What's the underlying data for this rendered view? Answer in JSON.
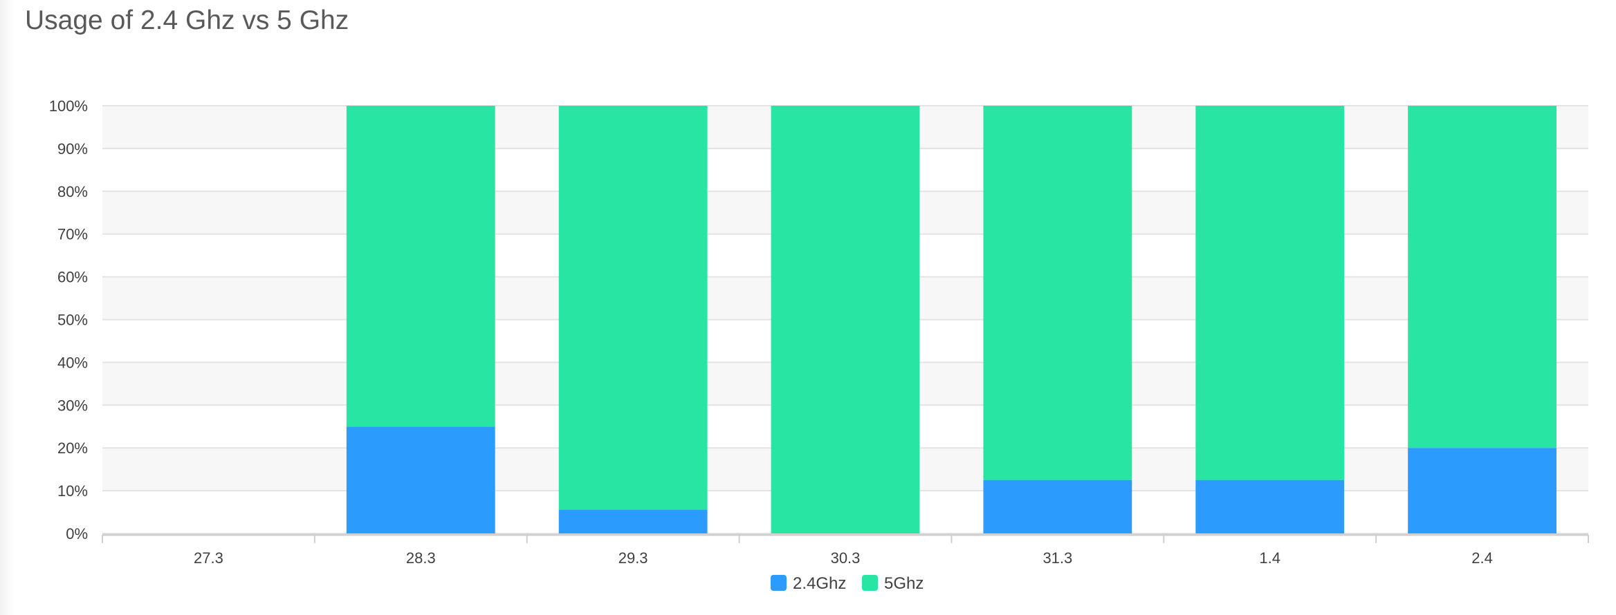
{
  "chart_data": {
    "type": "bar",
    "stacked": true,
    "title": "Usage of 2.4 Ghz vs 5 Ghz",
    "xlabel": "",
    "ylabel": "",
    "categories": [
      "27.3",
      "28.3",
      "29.3",
      "30.3",
      "31.3",
      "1.4",
      "2.4"
    ],
    "series": [
      {
        "name": "2.4Ghz",
        "color": "#2b9bfe",
        "values": [
          0,
          25,
          5.6,
          0,
          12.5,
          12.5,
          20
        ]
      },
      {
        "name": "5Ghz",
        "color": "#29e5a3",
        "values": [
          0,
          75,
          94.4,
          100,
          87.5,
          87.5,
          80
        ]
      }
    ],
    "ylim": [
      0,
      100
    ],
    "yticks": [
      "0%",
      "10%",
      "20%",
      "30%",
      "40%",
      "50%",
      "60%",
      "70%",
      "80%",
      "90%",
      "100%"
    ],
    "grid": true,
    "legend": "bottom-center"
  }
}
